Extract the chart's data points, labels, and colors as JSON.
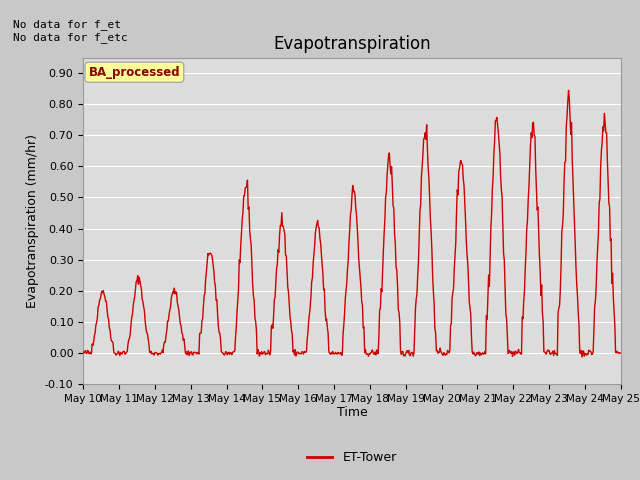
{
  "title": "Evapotranspiration",
  "ylabel": "Evapotranspiration (mm/hr)",
  "xlabel": "Time",
  "ylim": [
    -0.1,
    0.95
  ],
  "yticks": [
    -0.1,
    0.0,
    0.1,
    0.2,
    0.3,
    0.4,
    0.5,
    0.6,
    0.7,
    0.8,
    0.9
  ],
  "line_color": "#cc0000",
  "line_width": 1.0,
  "fig_bg_color": "#c8c8c8",
  "plot_bg": "#dcdcdc",
  "annotation_text": "No data for f_et\nNo data for f_etc",
  "box_label": "BA_processed",
  "legend_label": "ET-Tower",
  "x_tick_labels": [
    "May 10",
    "May 11",
    "May 12",
    "May 13",
    "May 14",
    "May 15",
    "May 16",
    "May 17",
    "May 18",
    "May 19",
    "May 20",
    "May 21",
    "May 22",
    "May 23",
    "May 24",
    "May 25"
  ],
  "title_fontsize": 12,
  "axis_fontsize": 9,
  "tick_fontsize": 8,
  "peaks": [
    0.2,
    0.24,
    0.2,
    0.33,
    0.54,
    0.43,
    0.41,
    0.52,
    0.63,
    0.72,
    0.63,
    0.75,
    0.72,
    0.8,
    0.75
  ]
}
